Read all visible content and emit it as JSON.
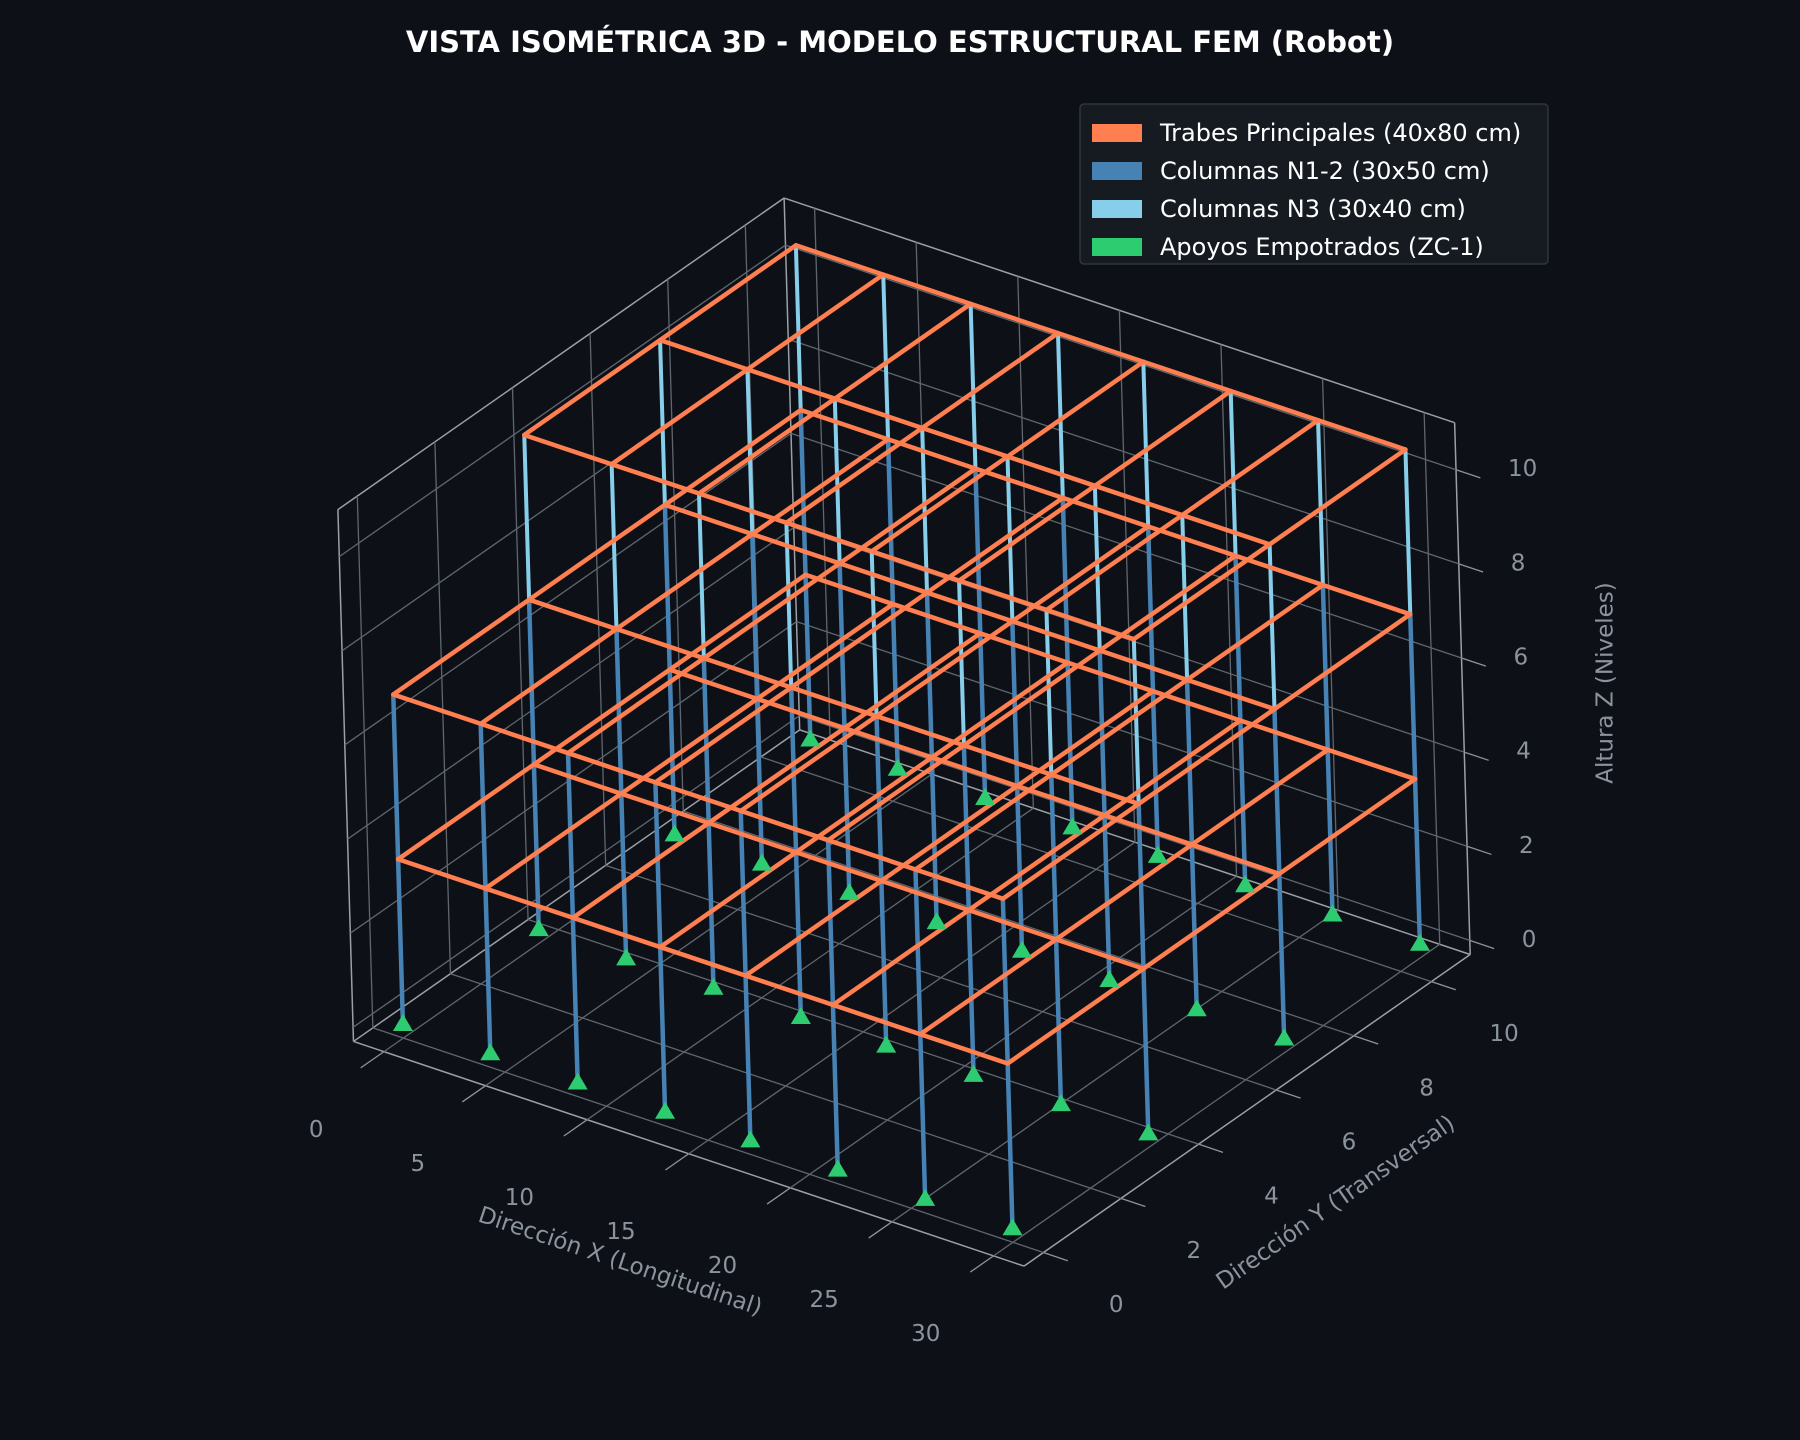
{
  "chart_data": {
    "type": "frame3d",
    "title": "VISTA ISOMÉTRICA 3D - MODELO ESTRUCTURAL FEM (Robot)",
    "xlabel": "Dirección X (Longitudinal)",
    "ylabel": "Dirección Y (Transversal)",
    "zlabel": "Altura Z (Niveles)",
    "xlim": [
      -1.5,
      31.5
    ],
    "ylim": [
      -0.5,
      11
    ],
    "zlim": [
      -0.3,
      11
    ],
    "xticks": [
      0,
      5,
      10,
      15,
      20,
      25,
      30
    ],
    "yticks": [
      0,
      2,
      4,
      6,
      8,
      10
    ],
    "zticks": [
      0,
      2,
      4,
      6,
      8,
      10
    ],
    "x_grid": [
      0,
      4.3,
      8.6,
      12.9,
      17.1,
      21.4,
      25.7,
      30
    ],
    "y_grid": [
      0,
      3.5,
      7,
      10.5
    ],
    "levels": [
      3.5,
      7,
      10.5
    ],
    "n3_y_grid": [
      3.5,
      7,
      10.5
    ],
    "series": [
      {
        "name": "Trabes Principales (40x80 cm)",
        "color": "#ff7f50"
      },
      {
        "name": "Columnas N1-2 (30x50 cm)",
        "color": "#4682b4"
      },
      {
        "name": "Columnas N3 (30x40 cm)",
        "color": "#87ceeb"
      },
      {
        "name": "Apoyos Empotrados (ZC-1)",
        "color": "#2ecc71"
      }
    ],
    "legend": "upper right",
    "grid": true
  }
}
